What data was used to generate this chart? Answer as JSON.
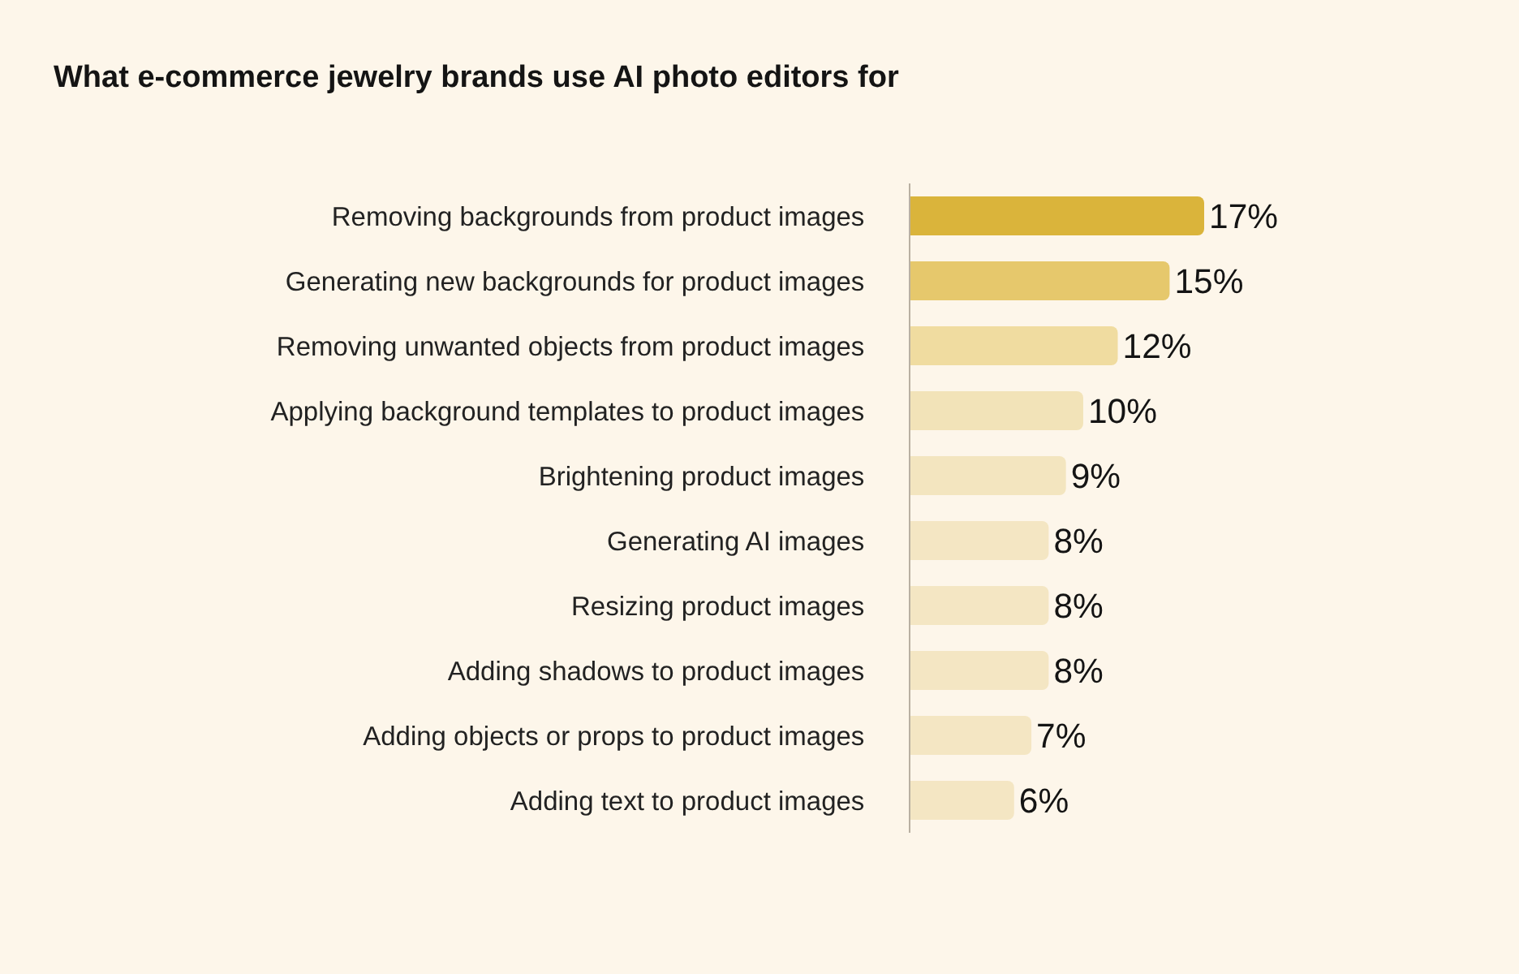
{
  "chart_data": {
    "type": "bar",
    "orientation": "horizontal",
    "title": "What e-commerce jewelry brands use AI photo editors for",
    "categories": [
      "Removing backgrounds from product images",
      "Generating new backgrounds for product images",
      "Removing unwanted objects from product images",
      "Applying background templates to product images",
      "Brightening product images",
      "Generating AI images",
      "Resizing product images",
      "Adding shadows to product images",
      "Adding objects or props to product images",
      "Adding text to product images"
    ],
    "values": [
      17,
      15,
      12,
      10,
      9,
      8,
      8,
      8,
      7,
      6
    ],
    "value_labels": [
      "17%",
      "15%",
      "12%",
      "10%",
      "9%",
      "8%",
      "8%",
      "8%",
      "7%",
      "6%"
    ],
    "colors": [
      "#dab43b",
      "#e6c86c",
      "#f0dca0",
      "#f2e3b8",
      "#f3e5bf",
      "#f4e6c3",
      "#f4e6c3",
      "#f4e6c3",
      "#f4e6c3",
      "#f4e6c3"
    ],
    "tick_labels": "y"
  }
}
